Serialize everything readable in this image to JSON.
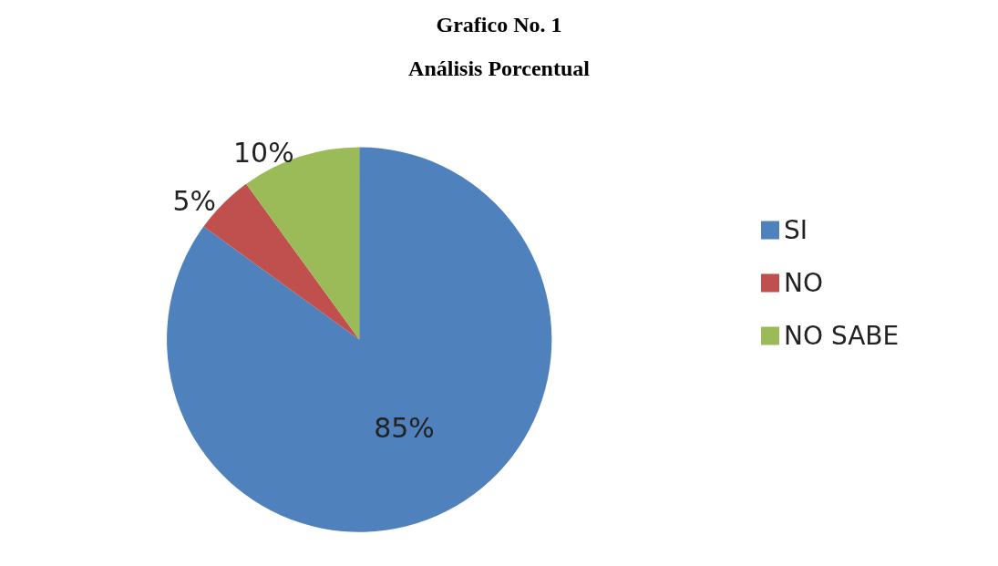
{
  "chart_data": {
    "type": "pie",
    "title": "Grafico No. 1",
    "subtitle": "Análisis Porcentual",
    "categories": [
      "SI",
      "NO",
      "NO SABE"
    ],
    "values": [
      85,
      5,
      10
    ],
    "colors": [
      "#4f81bd",
      "#c0504d",
      "#9bbb59"
    ],
    "value_labels": [
      "85%",
      "5%",
      "10%"
    ],
    "legend": "right"
  }
}
